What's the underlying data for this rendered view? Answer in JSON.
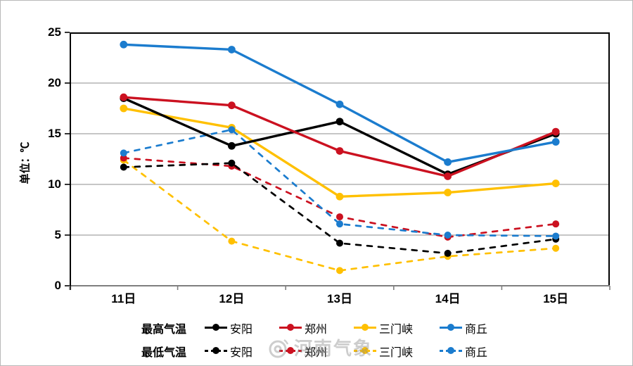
{
  "watermark": {
    "text": "河南气象"
  },
  "axes": {
    "y_title": "单位：℃",
    "y_tick_labels": [
      "0",
      "5",
      "10",
      "15",
      "20",
      "25"
    ],
    "x_tick_labels": [
      "11日",
      "12日",
      "13日",
      "14日",
      "15日"
    ]
  },
  "colors": {
    "gridline": "#a3a3a3",
    "axis_gray": "#7f7f7f",
    "frame_black": "#000000",
    "black": "#000000",
    "red": "#cb1120",
    "yellow": "#ffc000",
    "blue": "#1b7cce"
  },
  "chart_data": {
    "type": "line",
    "title": "",
    "ylabel": "单位：℃",
    "xlabel": "",
    "ylim": [
      0,
      25
    ],
    "y_tick_interval": 5,
    "grid": true,
    "legend_position": "bottom",
    "categories": [
      "11日",
      "12日",
      "13日",
      "14日",
      "15日"
    ],
    "series_groups": [
      {
        "label": "最高气温",
        "style": "solid"
      },
      {
        "label": "最低气温",
        "style": "dashed"
      }
    ],
    "series": [
      {
        "group": "最高气温",
        "name": "安阳",
        "color": "#000000",
        "style": "solid",
        "values": [
          18.5,
          13.8,
          16.2,
          11.0,
          15.0
        ]
      },
      {
        "group": "最高气温",
        "name": "郑州",
        "color": "#cb1120",
        "style": "solid",
        "values": [
          18.6,
          17.8,
          13.3,
          10.8,
          15.2
        ]
      },
      {
        "group": "最高气温",
        "name": "三门峡",
        "color": "#ffc000",
        "style": "solid",
        "values": [
          17.5,
          15.6,
          8.8,
          9.2,
          10.1
        ]
      },
      {
        "group": "最高气温",
        "name": "商丘",
        "color": "#1b7cce",
        "style": "solid",
        "values": [
          23.8,
          23.3,
          17.9,
          12.2,
          14.2
        ]
      },
      {
        "group": "最低气温",
        "name": "安阳",
        "color": "#000000",
        "style": "dashed",
        "values": [
          11.7,
          12.1,
          4.2,
          3.2,
          4.6
        ]
      },
      {
        "group": "最低气温",
        "name": "郑州",
        "color": "#cb1120",
        "style": "dashed",
        "values": [
          12.6,
          11.8,
          6.8,
          4.8,
          6.1
        ]
      },
      {
        "group": "最低气温",
        "name": "三门峡",
        "color": "#ffc000",
        "style": "dashed",
        "values": [
          12.4,
          4.4,
          1.5,
          2.9,
          3.7
        ]
      },
      {
        "group": "最低气温",
        "name": "商丘",
        "color": "#1b7cce",
        "style": "dashed",
        "values": [
          13.1,
          15.4,
          6.1,
          5.0,
          4.9
        ]
      }
    ],
    "draw_order": [
      2,
      6,
      5,
      4,
      7,
      0,
      1,
      3
    ]
  }
}
